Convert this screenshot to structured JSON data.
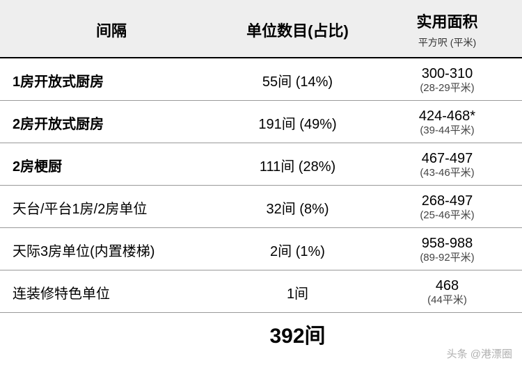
{
  "header": {
    "col1": "间隔",
    "col2": "单位数目(占比)",
    "col3_main": "实用面积",
    "col3_sub": "平方呎 (平米)"
  },
  "rows": [
    {
      "layout": "1房开放式厨房",
      "bold": true,
      "units": "55间 (14%)",
      "area_main": "300-310",
      "area_sub": "(28-29平米)"
    },
    {
      "layout": "2房开放式厨房",
      "bold": true,
      "units": "191间 (49%)",
      "area_main": "424-468*",
      "area_sub": "(39-44平米)"
    },
    {
      "layout": "2房梗厨",
      "bold": true,
      "units": "111间 (28%)",
      "area_main": "467-497",
      "area_sub": "(43-46平米)"
    },
    {
      "layout": "天台/平台1房/2房单位",
      "bold": false,
      "units": "32间 (8%)",
      "area_main": "268-497",
      "area_sub": "(25-46平米)"
    },
    {
      "layout": "天际3房单位(内置楼梯)",
      "bold": false,
      "units": "2间 (1%)",
      "area_main": "958-988",
      "area_sub": "(89-92平米)"
    },
    {
      "layout": "连装修特色单位",
      "bold": false,
      "units": "1间",
      "area_main": "468",
      "area_sub": "(44平米)"
    }
  ],
  "total": {
    "value": "392间"
  },
  "watermark": "头条 @港漂圈",
  "styles": {
    "background": "#ffffff",
    "header_bg": "#eeeeee",
    "border_color": "#000000",
    "row_border": "#999999",
    "text_color": "#000000",
    "sub_text_color": "#444444",
    "watermark_color": "#b0b0b0",
    "header_fontsize": 22,
    "row_fontsize": 20,
    "sub_fontsize": 15,
    "total_fontsize": 30
  }
}
